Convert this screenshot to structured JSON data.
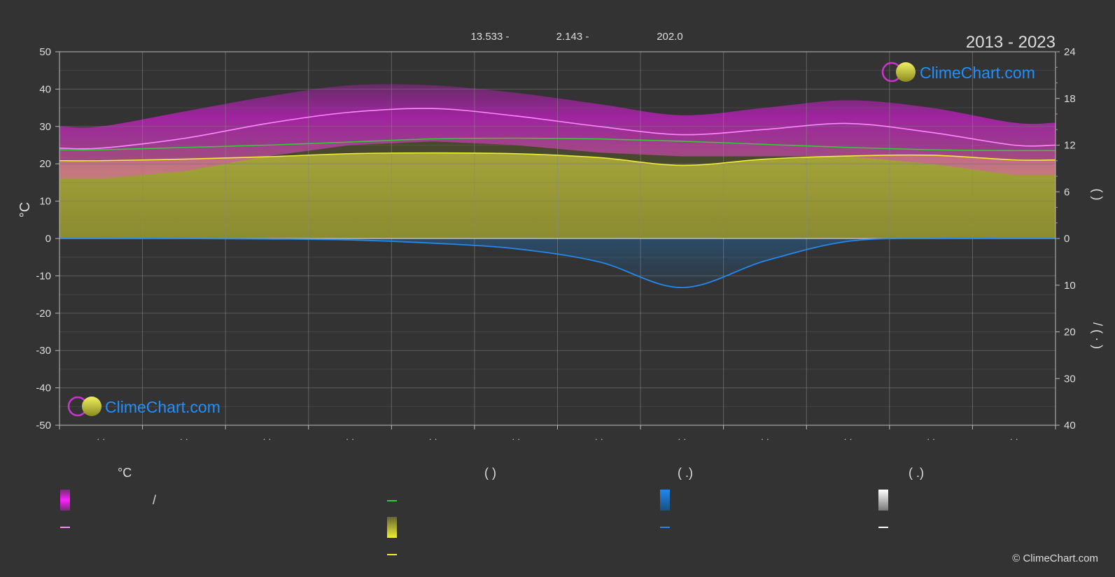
{
  "period": "2013 - 2023",
  "coords": {
    "lat": "13.533 -",
    "lon": "2.143 -",
    "elevation": "202.0"
  },
  "brand": {
    "name": "ClimeChart.com",
    "copyright": "© ClimeChart.com"
  },
  "colors": {
    "background": "#333333",
    "sunshine": "#c8c83a",
    "daylight": "#22cc22",
    "temp_band": "#cc22cc",
    "temp_mean": "#ff88ff",
    "precip": "#2288dd",
    "brand_blue": "#1e90ff"
  },
  "chart_data": {
    "type": "line",
    "x_tick_labels": [
      "· ·",
      "· ·",
      "· ·",
      "· ·",
      "· ·",
      "· ·",
      "· ·",
      "· ·",
      "· ·",
      "· ·",
      "· ·",
      "· ·"
    ],
    "y_left": {
      "label": "°C",
      "range": [
        -50,
        50
      ],
      "ticks": [
        50,
        40,
        30,
        20,
        10,
        0,
        -10,
        -20,
        -30,
        -40,
        -50
      ]
    },
    "y_right_top": {
      "range": [
        0,
        24
      ],
      "ticks": [
        24,
        18,
        12,
        6,
        0
      ],
      "label": "(  )"
    },
    "y_right_bottom": {
      "range": [
        0,
        40
      ],
      "ticks": [
        0,
        10,
        20,
        30,
        40
      ],
      "label": "/  ( · )"
    },
    "series": [
      {
        "key": "temp_mean",
        "values": [
          24.2,
          26.8,
          30.8,
          33.8,
          34.8,
          32.8,
          30.0,
          27.8,
          29.2,
          30.8,
          28.4,
          25.0
        ]
      },
      {
        "key": "temp_band_max",
        "values": [
          30,
          34,
          38,
          41,
          41,
          39,
          36,
          33,
          35,
          37,
          35,
          31
        ]
      },
      {
        "key": "temp_band_min",
        "values": [
          16,
          18,
          22,
          25,
          26,
          25,
          23,
          22,
          22,
          22,
          20,
          17
        ]
      },
      {
        "key": "daylight_hours",
        "values": [
          11.4,
          11.7,
          12.0,
          12.4,
          12.8,
          12.9,
          12.8,
          12.5,
          12.1,
          11.7,
          11.4,
          11.3
        ]
      },
      {
        "key": "sunshine_hours",
        "values": [
          10.0,
          10.2,
          10.5,
          10.9,
          11.0,
          10.9,
          10.4,
          9.4,
          10.2,
          10.6,
          10.7,
          10.1
        ]
      },
      {
        "key": "precip_mm",
        "values": [
          0.0,
          0.0,
          0.1,
          0.3,
          1.0,
          2.2,
          5.0,
          10.5,
          4.8,
          0.6,
          0.0,
          0.0
        ]
      }
    ]
  },
  "legend": {
    "col1": {
      "head": "°C",
      "item1": "/"
    },
    "col2": {
      "head": "(           )"
    },
    "col3": {
      "head": "(   .)"
    },
    "col4": {
      "head": "(   .)"
    }
  }
}
